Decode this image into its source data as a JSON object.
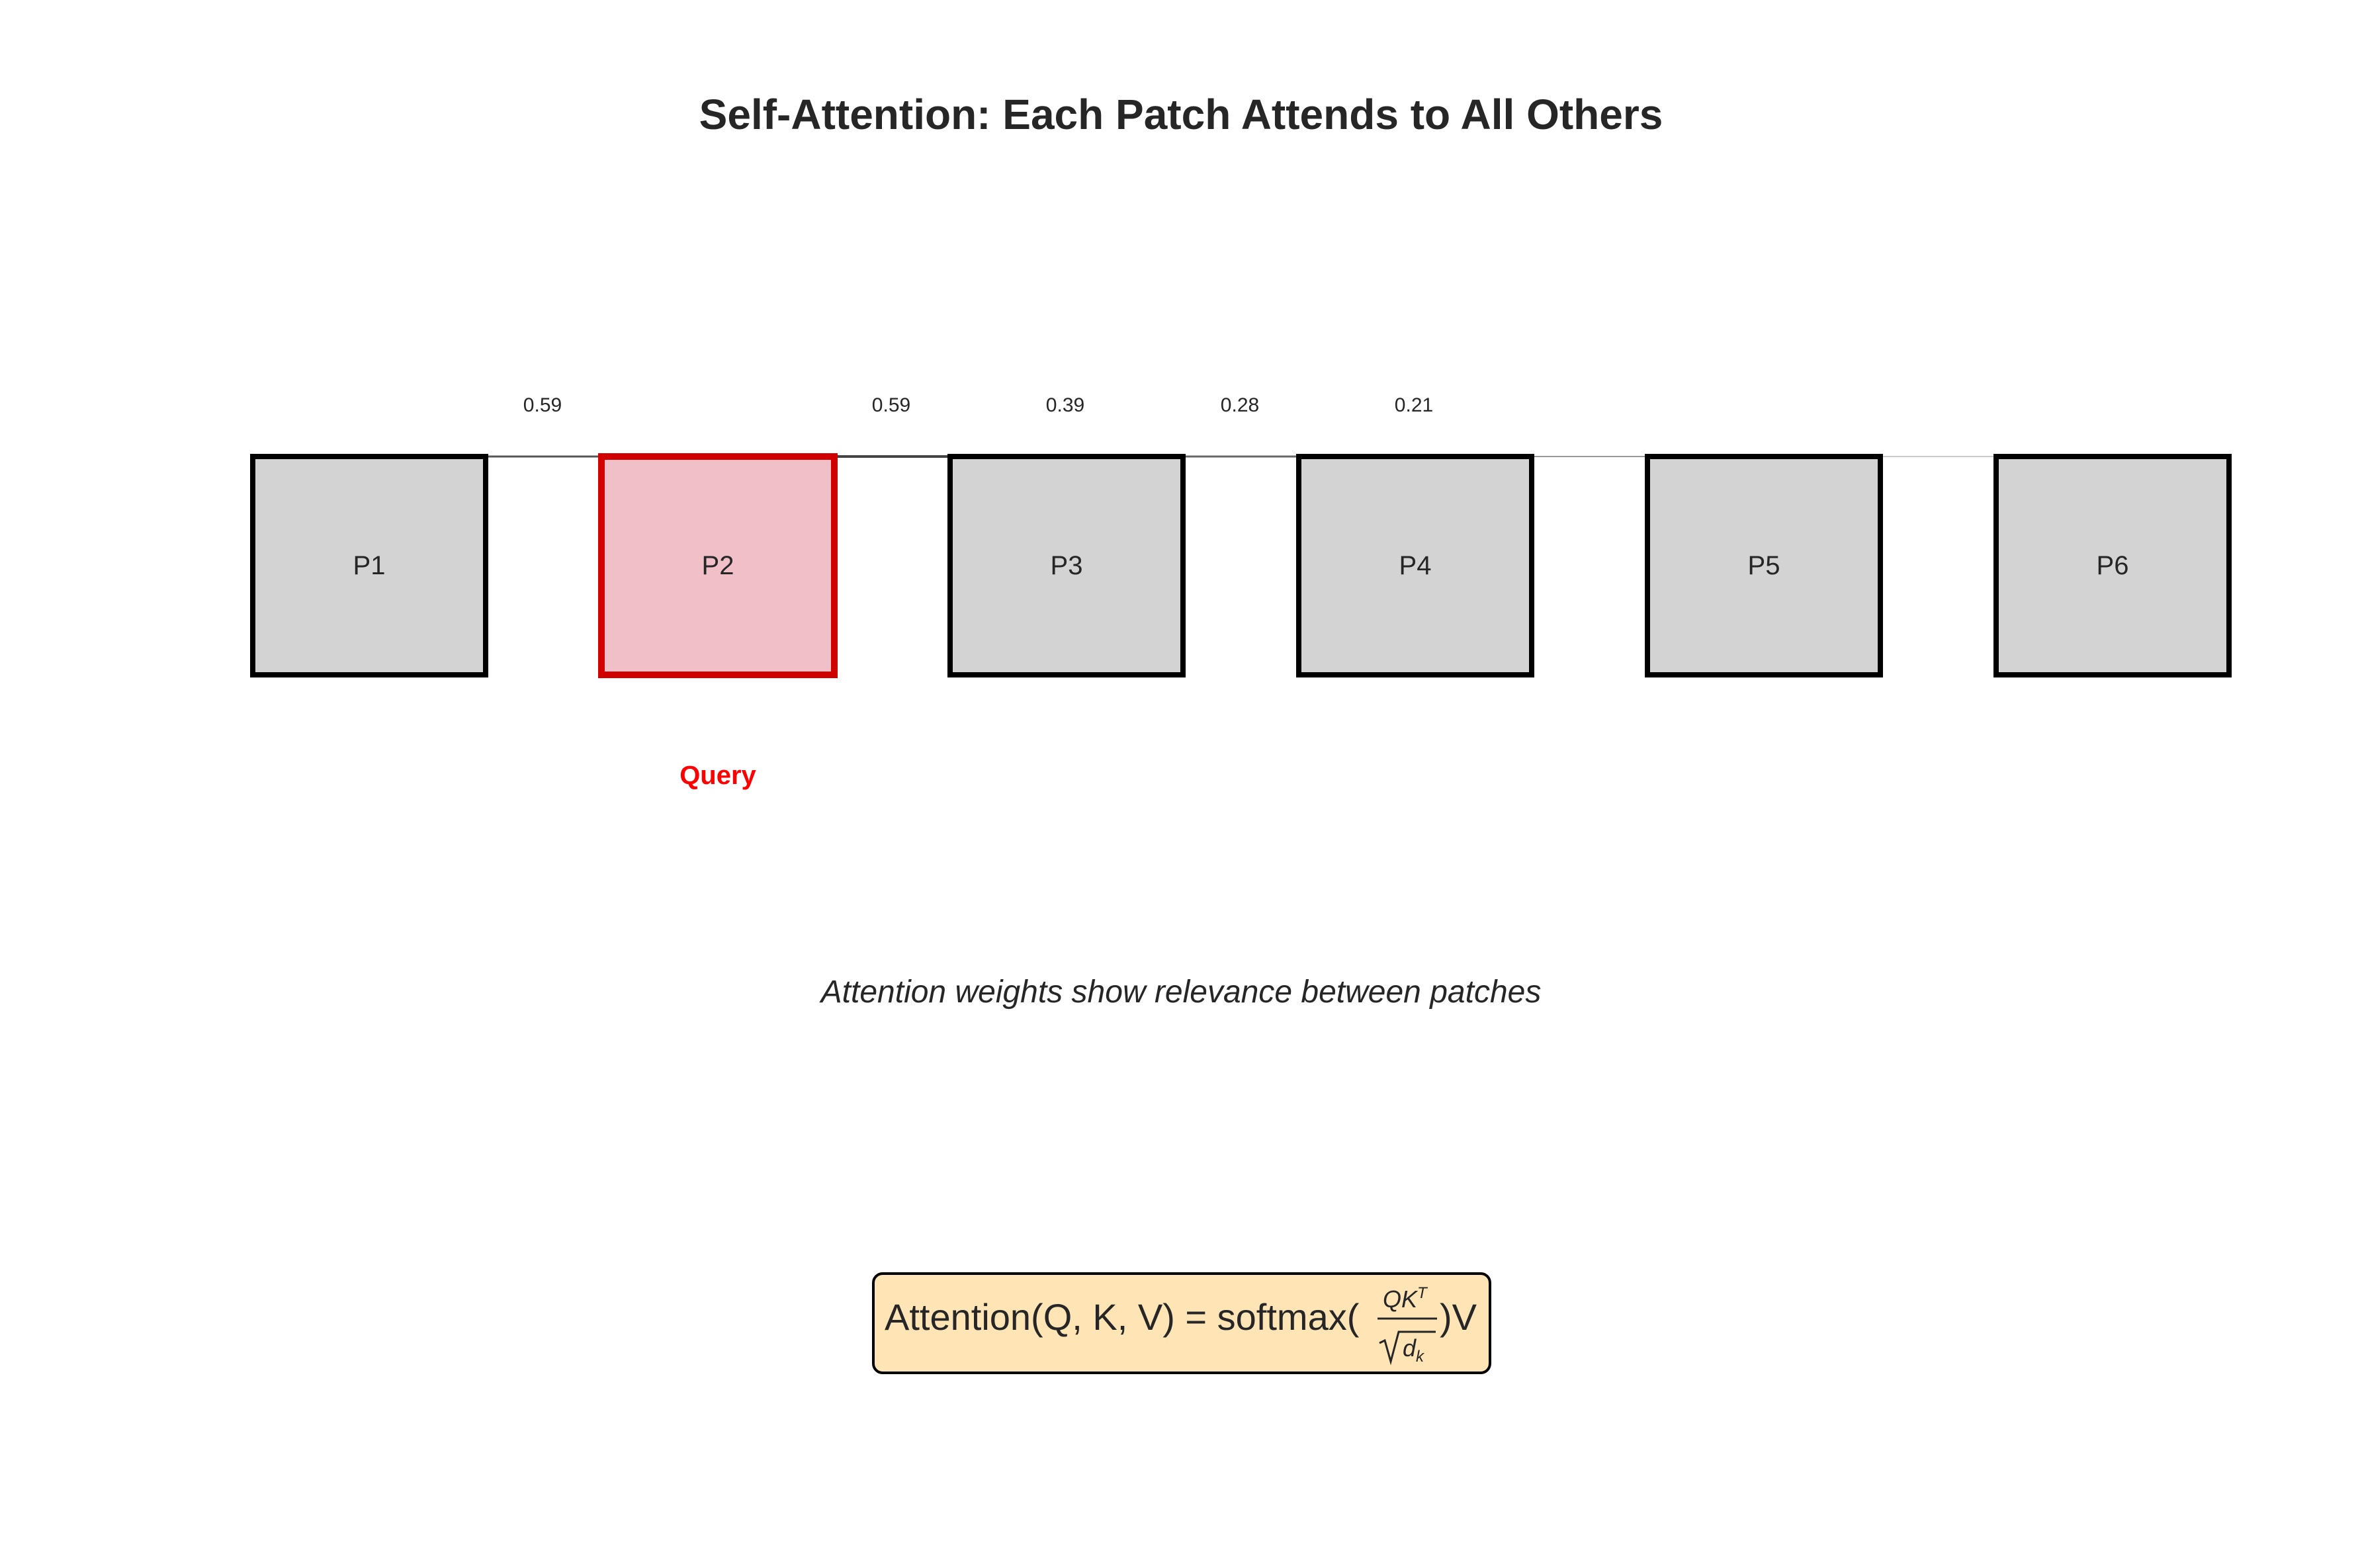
{
  "title": "Self-Attention: Each Patch Attends to All Others",
  "patches": [
    {
      "label": "P1",
      "query": false
    },
    {
      "label": "P2",
      "query": true
    },
    {
      "label": "P3",
      "query": false
    },
    {
      "label": "P4",
      "query": false
    },
    {
      "label": "P5",
      "query": false
    },
    {
      "label": "P6",
      "query": false
    }
  ],
  "query_label": "Query",
  "attention_weights": [
    {
      "from": "P2",
      "to": "P1",
      "weight": "0.59"
    },
    {
      "from": "P2",
      "to": "P3",
      "weight": "0.59"
    },
    {
      "from": "P2",
      "to": "P4",
      "weight": "0.39"
    },
    {
      "from": "P2",
      "to": "P5",
      "weight": "0.28"
    },
    {
      "from": "P2",
      "to": "P6",
      "weight": "0.21"
    }
  ],
  "caption": "Attention weights show relevance between patches",
  "formula": {
    "prefix": "Attention(Q, K, V) = softmax(",
    "numerator": "QK",
    "numerator_sup": "T",
    "denominator": "d",
    "denominator_sub": "k",
    "suffix": ")V"
  },
  "colors": {
    "patch_fill": "#d3d3d3",
    "patch_border": "#000000",
    "query_fill": "#f0bfc8",
    "query_border": "#d00000",
    "formula_box_fill": "#ffe4b5",
    "text": "#262626",
    "query_text": "#ff0000"
  }
}
